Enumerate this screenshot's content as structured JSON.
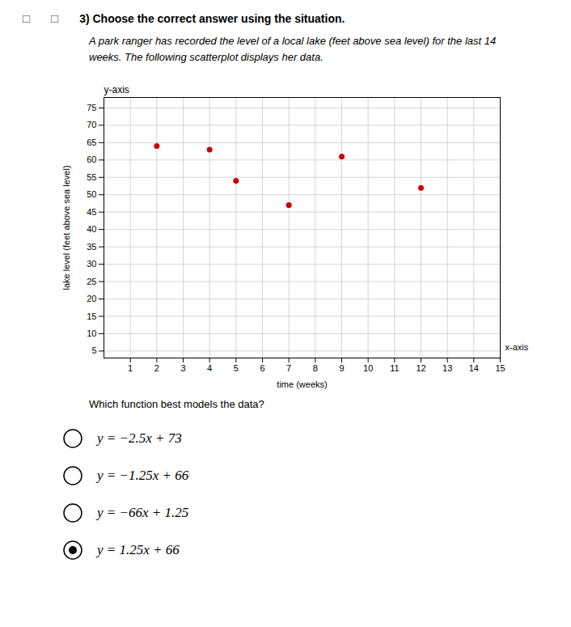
{
  "chart_data": {
    "type": "scatter",
    "title": "3) Choose the correct answer using the situation.",
    "icons": [
      "□",
      "□"
    ],
    "subtitle": "A park ranger has recorded the level of a local lake (feet above sea level) for the last 14\nweeks. The following scatterplot displays her data.",
    "x_label": "time (weeks)",
    "y_label": "lake level (feet above sea level)",
    "annotations": [
      "y-axis",
      "x-axis"
    ],
    "x": [
      2,
      4,
      5,
      7,
      9,
      12
    ],
    "values": [
      64,
      63,
      54,
      47,
      61,
      52
    ],
    "color": "#cc0000",
    "xlim": [
      0,
      15
    ],
    "ylim": [
      3,
      78
    ],
    "xticks": [
      1,
      2,
      3,
      4,
      5,
      6,
      7,
      8,
      9,
      10,
      11,
      12,
      13,
      14,
      15
    ],
    "yticks": [
      5,
      10,
      15,
      20,
      25,
      30,
      35,
      40,
      45,
      50,
      55,
      60,
      65,
      70,
      75
    ],
    "grid": true,
    "question": "Which function best models the data?",
    "answers": [
      {
        "text": "y = −2.5x + 73",
        "selected": false
      },
      {
        "text": "y = −1.25x + 66",
        "selected": false
      },
      {
        "text": "y = −66x + 1.25",
        "selected": false
      },
      {
        "text": "y = 1.25x + 66",
        "selected": true
      }
    ]
  }
}
